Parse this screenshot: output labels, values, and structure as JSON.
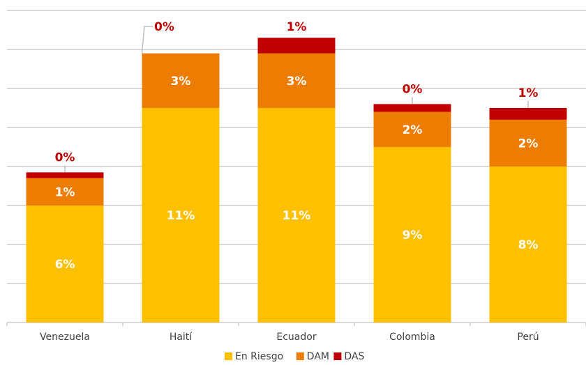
{
  "chart_data": {
    "type": "bar",
    "stacked": true,
    "categories": [
      "Venezuela",
      "Haití",
      "Ecuador",
      "Colombia",
      "Perú"
    ],
    "series": [
      {
        "name": "En Riesgo",
        "color": "#ffc000",
        "values": [
          6,
          11,
          11,
          9,
          8
        ],
        "labels": [
          "6%",
          "11%",
          "11%",
          "9%",
          "8%"
        ]
      },
      {
        "name": "DAM",
        "color": "#ed7d00",
        "values": [
          1.4,
          2.8,
          2.8,
          1.8,
          2.4
        ],
        "labels": [
          "1%",
          "3%",
          "3%",
          "2%",
          "2%"
        ]
      },
      {
        "name": "DAS",
        "color": "#c00000",
        "values": [
          0.3,
          0,
          0.8,
          0.4,
          0.6
        ],
        "labels": [
          "0%",
          "0%",
          "1%",
          "0%",
          "1%"
        ]
      }
    ],
    "ylim": [
      0,
      16
    ],
    "grid": true,
    "legend": "bottom-center",
    "title": "",
    "xlabel": "",
    "ylabel": ""
  }
}
